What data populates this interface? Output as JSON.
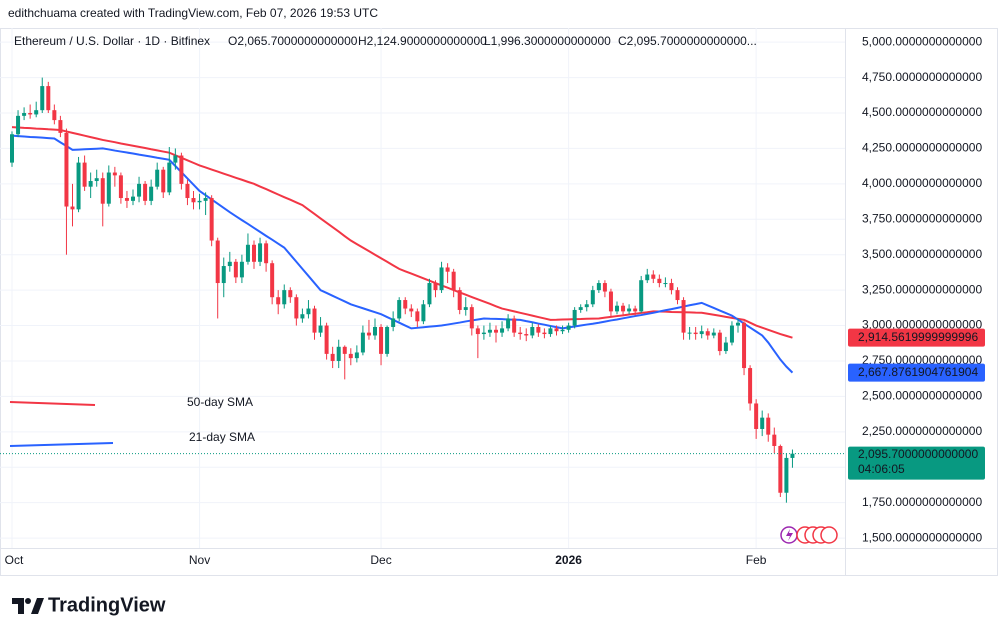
{
  "header": {
    "attribution": "edithchuama created with TradingView.com, Feb 07, 2026 19:53 UTC"
  },
  "chart_data": {
    "type": "candlestick",
    "title": "Ethereum / U.S. Dollar · 1D · Bitfinex",
    "ohlc_labels": [
      "O2,065.7000000000000",
      "H2,124.9000000000000",
      "L1,996.3000000000000",
      "C2,095.7000000000000..."
    ],
    "categories": [
      "Oct",
      null,
      null,
      null,
      null,
      null,
      null,
      null,
      null,
      null,
      null,
      null,
      null,
      null,
      null,
      null,
      null,
      null,
      null,
      null,
      null,
      null,
      null,
      null,
      null,
      null,
      null,
      null,
      null,
      null,
      null,
      "Nov",
      null,
      null,
      null,
      null,
      null,
      null,
      null,
      null,
      null,
      null,
      null,
      null,
      null,
      null,
      null,
      null,
      null,
      null,
      null,
      null,
      null,
      null,
      null,
      null,
      null,
      null,
      null,
      null,
      null,
      "Dec",
      null,
      null,
      null,
      null,
      null,
      null,
      null,
      null,
      null,
      null,
      null,
      null,
      null,
      null,
      null,
      null,
      null,
      null,
      null,
      null,
      null,
      null,
      null,
      null,
      null,
      null,
      null,
      null,
      null,
      null,
      "2026",
      null,
      null,
      null,
      null,
      null,
      null,
      null,
      null,
      null,
      null,
      null,
      null,
      null,
      null,
      null,
      null,
      null,
      null,
      null,
      null,
      null,
      null,
      null,
      null,
      null,
      null,
      null,
      null,
      null,
      null,
      "Feb",
      null,
      null,
      null,
      null,
      null,
      null
    ],
    "open": [
      4150,
      4350,
      4480,
      4500,
      4490,
      4520,
      4690,
      4520,
      4450,
      4360,
      3840,
      3820,
      4150,
      3980,
      4020,
      4040,
      3860,
      4080,
      4060,
      3900,
      3880,
      3910,
      4000,
      3880,
      3980,
      4100,
      3940,
      4150,
      4200,
      4000,
      3900,
      3870,
      3880,
      3900,
      3600,
      3300,
      3420,
      3450,
      3340,
      3450,
      3570,
      3450,
      3580,
      3440,
      3200,
      3150,
      3250,
      3200,
      3050,
      3080,
      3120,
      2950,
      3000,
      2800,
      2750,
      2850,
      2800,
      2770,
      2810,
      2950,
      2930,
      2990,
      2800,
      2990,
      3050,
      3180,
      3120,
      3100,
      3030,
      3150,
      3300,
      3250,
      3410,
      3380,
      3250,
      3110,
      3130,
      2980,
      2940,
      2950,
      2970,
      2950,
      2980,
      3050,
      2950,
      2940,
      2930,
      2990,
      2950,
      2940,
      2980,
      2960,
      2970,
      3000,
      3110,
      3130,
      3150,
      3250,
      3300,
      3240,
      3100,
      3140,
      3100,
      3120,
      3100,
      3320,
      3360,
      3330,
      3300,
      3300,
      3250,
      3180,
      2950,
      2950,
      2940,
      2960,
      2930,
      2950,
      2820,
      2880,
      3000,
      3020,
      2700,
      2450,
      2270,
      2350,
      2230,
      2150,
      1820,
      2065.7
    ],
    "high": [
      4370,
      4520,
      4540,
      4560,
      4580,
      4750,
      4720,
      4560,
      4480,
      4390,
      4000,
      4190,
      4200,
      4080,
      4100,
      4080,
      4130,
      4120,
      4080,
      3950,
      3960,
      4050,
      4020,
      4030,
      4150,
      4120,
      4260,
      4250,
      4220,
      4030,
      3950,
      3930,
      3940,
      3920,
      3620,
      3480,
      3520,
      3470,
      3500,
      3650,
      3600,
      3620,
      3600,
      3460,
      3250,
      3290,
      3270,
      3220,
      3120,
      3180,
      3140,
      3060,
      3020,
      2850,
      2900,
      2860,
      2840,
      2860,
      3000,
      3040,
      3050,
      3010,
      3000,
      3100,
      3200,
      3200,
      3150,
      3120,
      3180,
      3330,
      3320,
      3450,
      3440,
      3400,
      3270,
      3200,
      3150,
      3000,
      3000,
      3020,
      3000,
      3030,
      3080,
      3070,
      2990,
      2980,
      3020,
      3010,
      2980,
      3000,
      3000,
      3000,
      3020,
      3130,
      3150,
      3180,
      3280,
      3320,
      3320,
      3260,
      3170,
      3160,
      3150,
      3140,
      3350,
      3400,
      3390,
      3360,
      3340,
      3330,
      3270,
      3200,
      2990,
      2990,
      3000,
      2980,
      2980,
      2970,
      2920,
      3030,
      3050,
      3030,
      2720,
      2480,
      2400,
      2380,
      2280,
      2160,
      2100,
      2124.9
    ],
    "low": [
      4120,
      4330,
      4450,
      4460,
      4470,
      4500,
      4500,
      4420,
      4330,
      3500,
      3700,
      3800,
      3950,
      3900,
      3980,
      3700,
      3840,
      3980,
      3860,
      3830,
      3850,
      3870,
      3850,
      3850,
      3960,
      3900,
      3920,
      4100,
      3960,
      3850,
      3820,
      3820,
      3780,
      3560,
      3050,
      3200,
      3380,
      3300,
      3300,
      3430,
      3400,
      3420,
      3380,
      3150,
      3080,
      3120,
      3160,
      3000,
      3020,
      3050,
      2900,
      2920,
      2760,
      2700,
      2700,
      2620,
      2720,
      2740,
      2790,
      2900,
      2900,
      2720,
      2780,
      2960,
      3030,
      3080,
      3060,
      2990,
      3010,
      3130,
      3200,
      3230,
      3300,
      3200,
      3080,
      3070,
      2930,
      2770,
      2900,
      2920,
      2880,
      2920,
      2960,
      2920,
      2900,
      2890,
      2910,
      2920,
      2910,
      2920,
      2930,
      2940,
      2950,
      2980,
      3090,
      3100,
      3130,
      3230,
      3200,
      3060,
      3080,
      3070,
      3080,
      3070,
      3090,
      3300,
      3300,
      3270,
      3270,
      3220,
      3150,
      2900,
      2900,
      2900,
      2910,
      2900,
      2910,
      2790,
      2800,
      2860,
      2950,
      2650,
      2400,
      2200,
      2220,
      2180,
      2100,
      1790,
      1750,
      1996.3
    ],
    "close": [
      4350,
      4480,
      4500,
      4490,
      4520,
      4690,
      4520,
      4450,
      4360,
      3840,
      3820,
      4150,
      3980,
      4020,
      4040,
      3860,
      4080,
      4060,
      3900,
      3880,
      3910,
      4000,
      3880,
      3980,
      4100,
      3940,
      4150,
      4200,
      4000,
      3900,
      3870,
      3880,
      3900,
      3600,
      3300,
      3420,
      3450,
      3340,
      3450,
      3570,
      3450,
      3580,
      3440,
      3200,
      3150,
      3250,
      3200,
      3050,
      3080,
      3120,
      2950,
      3000,
      2800,
      2750,
      2850,
      2800,
      2770,
      2810,
      2950,
      2930,
      2990,
      2800,
      2990,
      3050,
      3180,
      3120,
      3100,
      3030,
      3150,
      3300,
      3250,
      3410,
      3380,
      3250,
      3110,
      3130,
      2980,
      2940,
      2950,
      2970,
      2950,
      2980,
      3050,
      2950,
      2940,
      2930,
      2990,
      2950,
      2940,
      2980,
      2960,
      2970,
      3000,
      3110,
      3130,
      3150,
      3250,
      3300,
      3240,
      3100,
      3140,
      3100,
      3120,
      3100,
      3320,
      3360,
      3330,
      3300,
      3300,
      3250,
      3180,
      2950,
      2950,
      2940,
      2960,
      2930,
      2950,
      2820,
      2880,
      3000,
      3020,
      2700,
      2450,
      2270,
      2350,
      2230,
      2150,
      1820,
      2065.7,
      2095.7
    ],
    "up_color": "#089981",
    "down_color": "#f23645",
    "last_close_label": "2,095.7000000000000",
    "countdown": "04:06:05",
    "series": [
      {
        "name": "50-day SMA",
        "color": "#f23645",
        "last_label": "2,914.5619999999996",
        "values": [
          4400,
          4398,
          4395,
          4393,
          4390,
          4388,
          4385,
          4383,
          4380,
          4370,
          4360,
          4350,
          4340,
          4330,
          4320,
          4310,
          4302,
          4294,
          4285,
          4277,
          4269,
          4261,
          4253,
          4244,
          4236,
          4228,
          4220,
          4202,
          4184,
          4166,
          4148,
          4130,
          4116,
          4101,
          4087,
          4072,
          4058,
          4043,
          4029,
          4014,
          4000,
          3981,
          3963,
          3944,
          3925,
          3906,
          3888,
          3869,
          3850,
          3819,
          3788,
          3756,
          3725,
          3694,
          3663,
          3631,
          3600,
          3575,
          3550,
          3525,
          3500,
          3475,
          3450,
          3425,
          3400,
          3383,
          3367,
          3350,
          3333,
          3317,
          3300,
          3283,
          3267,
          3250,
          3234,
          3218,
          3201,
          3185,
          3169,
          3153,
          3136,
          3120,
          3110,
          3100,
          3090,
          3080,
          3070,
          3060,
          3050,
          3040,
          3041,
          3043,
          3044,
          3045,
          3046,
          3048,
          3049,
          3050,
          3056,
          3061,
          3067,
          3072,
          3078,
          3083,
          3089,
          3094,
          3100,
          3099,
          3098,
          3096,
          3095,
          3094,
          3093,
          3091,
          3090,
          3083,
          3076,
          3069,
          3061,
          3054,
          3047,
          3040,
          3020,
          3000,
          2985,
          2970,
          2955,
          2940,
          2927,
          2914.5619999999994
        ]
      },
      {
        "name": "21-day SMA",
        "color": "#2962ff",
        "last_label": "2,667.8761904761904",
        "values": [
          4340,
          4337,
          4334,
          4331,
          4329,
          4326,
          4323,
          4320,
          4293,
          4267,
          4240,
          4242,
          4244,
          4246,
          4248,
          4250,
          4243,
          4235,
          4228,
          4221,
          4214,
          4206,
          4199,
          4192,
          4184,
          4177,
          4170,
          4126,
          4082,
          4038,
          3994,
          3950,
          3920,
          3890,
          3860,
          3830,
          3800,
          3772,
          3744,
          3717,
          3689,
          3661,
          3633,
          3606,
          3578,
          3550,
          3500,
          3450,
          3400,
          3350,
          3300,
          3250,
          3230,
          3210,
          3190,
          3170,
          3150,
          3136,
          3122,
          3108,
          3094,
          3080,
          3060,
          3040,
          3020,
          3000,
          2980,
          2984,
          2988,
          2992,
          2996,
          3000,
          3007,
          3014,
          3021,
          3029,
          3036,
          3043,
          3050,
          3048,
          3047,
          3045,
          3043,
          3042,
          3040,
          3031,
          3023,
          3014,
          3006,
          2997,
          2989,
          2980,
          2987,
          2993,
          3000,
          3007,
          3013,
          3020,
          3028,
          3036,
          3043,
          3051,
          3059,
          3067,
          3074,
          3082,
          3090,
          3099,
          3108,
          3116,
          3125,
          3134,
          3143,
          3151,
          3160,
          3142,
          3124,
          3106,
          3088,
          3070,
          3042,
          3014,
          2986,
          2958,
          2930,
          2880,
          2820,
          2760,
          2710,
          2667.8761904761905
        ]
      }
    ],
    "ylim": [
      1430,
      5100
    ],
    "yticks": [
      {
        "value": 1500,
        "label": "1,500.0000000000000"
      },
      {
        "value": 1750,
        "label": "1,750.0000000000000"
      },
      {
        "value": 2000,
        "label": "2,000.0000000000000"
      },
      {
        "value": 2250,
        "label": "2,250.0000000000000"
      },
      {
        "value": 2500,
        "label": "2,500.0000000000000"
      },
      {
        "value": 2750,
        "label": "2,750.0000000000000"
      },
      {
        "value": 3000,
        "label": "3,000.0000000000000"
      },
      {
        "value": 3250,
        "label": "3,250.0000000000000"
      },
      {
        "value": 3500,
        "label": "3,500.0000000000000"
      },
      {
        "value": 3750,
        "label": "3,750.0000000000000"
      },
      {
        "value": 4000,
        "label": "4,000.0000000000000"
      },
      {
        "value": 4250,
        "label": "4,250.0000000000000"
      },
      {
        "value": 4500,
        "label": "4,500.0000000000000"
      },
      {
        "value": 4750,
        "label": "4,750.0000000000000"
      },
      {
        "value": 5000,
        "label": "5,000.0000000000000"
      }
    ],
    "grid": true
  },
  "footer": {
    "logo": "TradingView"
  }
}
